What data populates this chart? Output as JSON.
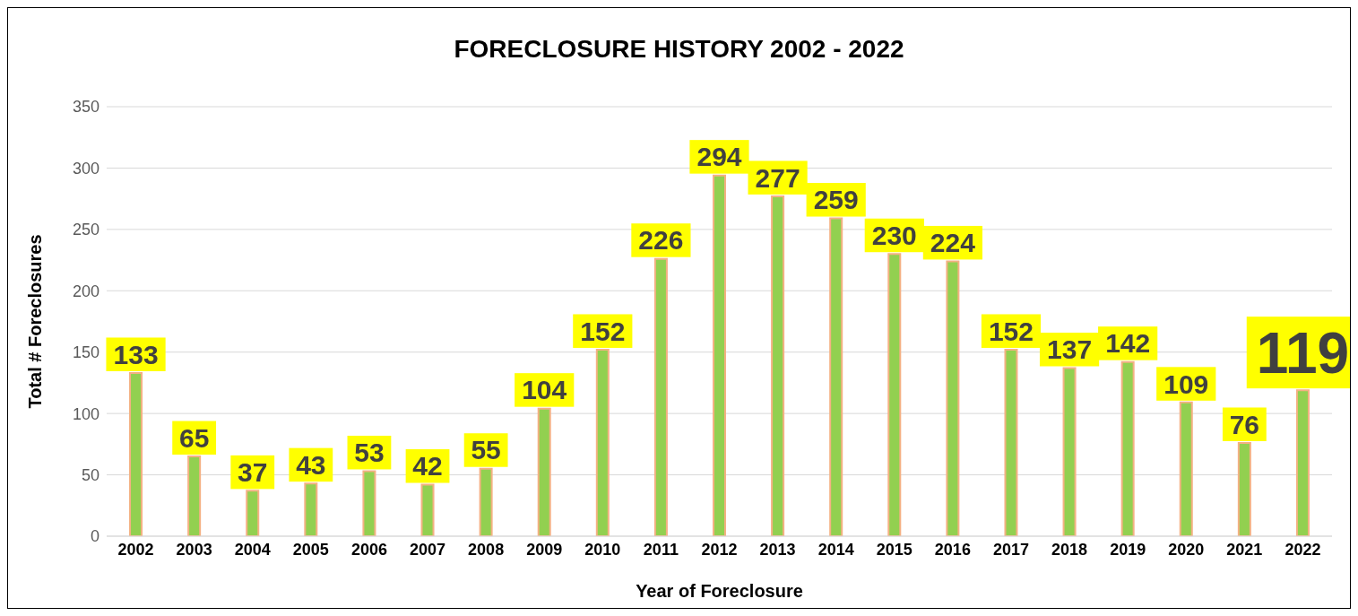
{
  "chart_data": {
    "type": "bar",
    "title": "FORECLOSURE HISTORY 2002 - 2022",
    "xlabel": "Year of Foreclosure",
    "ylabel": "Total # Foreclosures",
    "categories": [
      "2002",
      "2003",
      "2004",
      "2005",
      "2006",
      "2007",
      "2008",
      "2009",
      "2010",
      "2011",
      "2012",
      "2013",
      "2014",
      "2015",
      "2016",
      "2017",
      "2018",
      "2019",
      "2020",
      "2021",
      "2022"
    ],
    "values": [
      133,
      65,
      37,
      43,
      53,
      42,
      55,
      104,
      152,
      226,
      294,
      277,
      259,
      230,
      224,
      152,
      137,
      142,
      109,
      76,
      119
    ],
    "color": "#92d050",
    "ylim": [
      0,
      350
    ],
    "yticks": [
      0,
      50,
      100,
      150,
      200,
      250,
      300,
      350
    ],
    "grid": "y",
    "data_labels": true,
    "legend": false
  }
}
